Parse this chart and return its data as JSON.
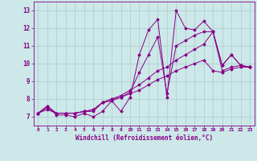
{
  "xlabel": "Windchill (Refroidissement éolien,°C)",
  "xlim": [
    -0.5,
    23.5
  ],
  "ylim": [
    6.5,
    13.5
  ],
  "xticks": [
    0,
    1,
    2,
    3,
    4,
    5,
    6,
    7,
    8,
    9,
    10,
    11,
    12,
    13,
    14,
    15,
    16,
    17,
    18,
    19,
    20,
    21,
    22,
    23
  ],
  "yticks": [
    7,
    8,
    9,
    10,
    11,
    12,
    13
  ],
  "bg_color": "#cce8e8",
  "line_color": "#880088",
  "grid_color": "#aacccc",
  "series": [
    [
      7.2,
      7.6,
      7.1,
      7.1,
      7.0,
      7.2,
      7.0,
      7.3,
      7.9,
      7.3,
      8.1,
      10.5,
      11.9,
      12.5,
      8.1,
      13.0,
      12.0,
      11.9,
      12.4,
      11.8,
      9.9,
      10.5,
      9.9,
      9.8
    ],
    [
      7.2,
      7.6,
      7.2,
      7.2,
      7.2,
      7.3,
      7.3,
      7.8,
      8.0,
      8.1,
      8.4,
      9.5,
      10.5,
      11.5,
      8.3,
      11.0,
      11.3,
      11.6,
      11.8,
      11.8,
      9.9,
      10.5,
      9.9,
      9.8
    ],
    [
      7.2,
      7.5,
      7.2,
      7.2,
      7.2,
      7.3,
      7.4,
      7.8,
      8.0,
      8.2,
      8.5,
      8.8,
      9.2,
      9.6,
      9.8,
      10.2,
      10.5,
      10.8,
      11.1,
      11.8,
      9.6,
      9.8,
      9.9,
      9.8
    ],
    [
      7.2,
      7.4,
      7.2,
      7.2,
      7.2,
      7.3,
      7.4,
      7.8,
      7.9,
      8.1,
      8.3,
      8.5,
      8.8,
      9.1,
      9.3,
      9.6,
      9.8,
      10.0,
      10.2,
      9.6,
      9.5,
      9.7,
      9.8,
      9.8
    ]
  ]
}
